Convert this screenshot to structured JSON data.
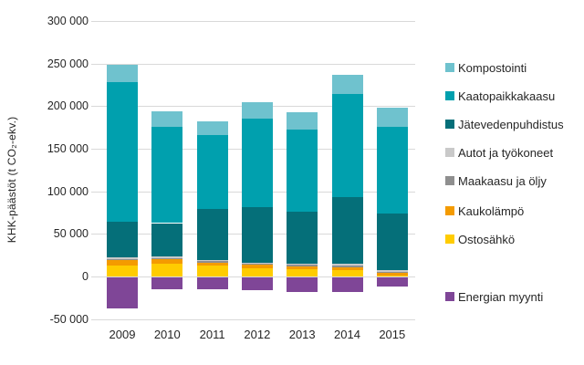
{
  "chart_data": {
    "type": "bar",
    "stacked": true,
    "title": "",
    "xlabel": "",
    "ylabel": "KHK-päästöt (t CO₂-ekv.)",
    "categories": [
      "2009",
      "2010",
      "2011",
      "2012",
      "2013",
      "2014",
      "2015"
    ],
    "series": [
      {
        "name": "Ostosähkö",
        "color": "#FFCC00",
        "values": [
          13000,
          15500,
          13000,
          9500,
          9000,
          7500,
          1000
        ]
      },
      {
        "name": "Kaukolämpö",
        "color": "#F49B00",
        "values": [
          6500,
          4500,
          3500,
          4000,
          3000,
          3000,
          3000
        ]
      },
      {
        "name": "Maakaasu ja öljy",
        "color": "#8F8F8F",
        "values": [
          1300,
          1600,
          1300,
          1400,
          1750,
          2000,
          1600
        ]
      },
      {
        "name": "Autot ja työkoneet",
        "color": "#C9C9C9",
        "values": [
          1300,
          1600,
          1300,
          1400,
          1750,
          2000,
          1600
        ]
      },
      {
        "name": "Jätevedenpuhdistus",
        "color": "#056F79",
        "values": [
          42500,
          39500,
          60000,
          65000,
          61000,
          79000,
          67000
        ]
      },
      {
        "name": "Kaatopaikkakaasu",
        "color": "#00A0AE",
        "values": [
          164000,
          113500,
          86500,
          104000,
          96500,
          121000,
          101000
        ]
      },
      {
        "name": "Kompostointi",
        "color": "#6FC2CE",
        "values": [
          19500,
          18000,
          16700,
          19500,
          19500,
          22500,
          23000
        ]
      },
      {
        "name": "Energian myynti",
        "color": "#7F4697",
        "values": [
          -37000,
          -15500,
          -15500,
          -16500,
          -18000,
          -18500,
          -12000
        ]
      }
    ],
    "legend_order": [
      "Kompostointi",
      "Kaatopaikkakaasu",
      "Jätevedenpuhdistus",
      "Autot ja työkoneet",
      "Maakaasu ja öljy",
      "Kaukolämpö",
      "Ostosähkö",
      "Energian myynti"
    ],
    "ylim": [
      -50000,
      300000
    ],
    "ytick_step": 50000,
    "ytick_labels": [
      "300 000",
      "250 000",
      "200 000",
      "150 000",
      "100 000",
      "50 000",
      "0",
      "-50 000"
    ],
    "grid": true,
    "legend_position": "right",
    "gridline_color": "#D9D9D9",
    "text_color": "#262626"
  }
}
